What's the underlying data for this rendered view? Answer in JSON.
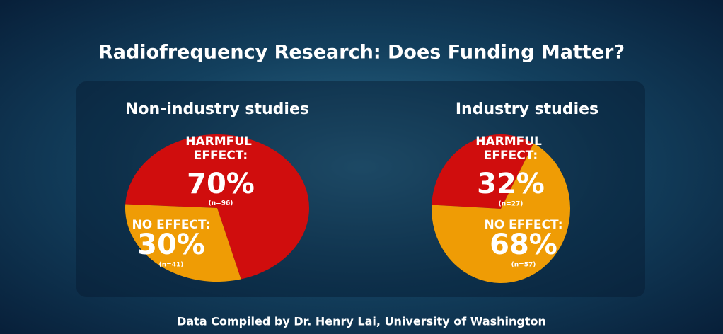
{
  "title": "Radiofrequency Research: Does Funding Matter?",
  "source": "Data Compiled by Dr. Henry Lai, University of Washington",
  "chart_data": [
    {
      "type": "pie",
      "title": "Non-industry studies",
      "categories": [
        "HARMFUL EFFECT:",
        "NO EFFECT:"
      ],
      "values": [
        70,
        30
      ],
      "value_labels": [
        "70%",
        "30%"
      ],
      "count_labels": [
        "(n=96)",
        "(n=41)"
      ],
      "colors": [
        "#d00d0d",
        "#ef9c05"
      ]
    },
    {
      "type": "pie",
      "title": "Industry studies",
      "categories": [
        "HARMFUL EFFECT:",
        "NO EFFECT:"
      ],
      "values": [
        32,
        68
      ],
      "value_labels": [
        "32%",
        "68%"
      ],
      "count_labels": [
        "(n=27)",
        "(n=57)"
      ],
      "colors": [
        "#d00d0d",
        "#ef9c05"
      ]
    }
  ]
}
